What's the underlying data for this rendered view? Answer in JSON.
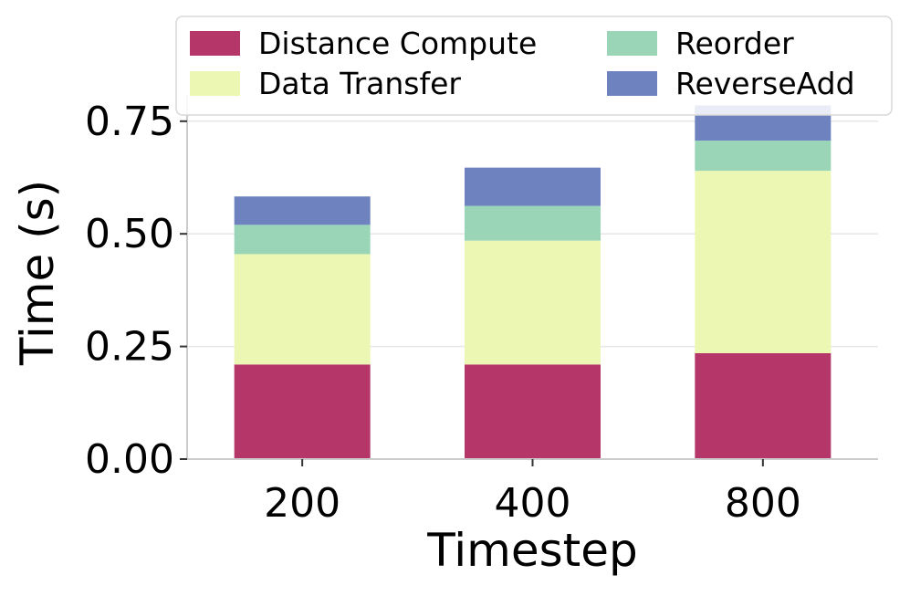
{
  "chart_data": {
    "type": "bar",
    "stacked": true,
    "categories": [
      "200",
      "400",
      "800"
    ],
    "series": [
      {
        "name": "Distance Compute",
        "color": "#b5376a",
        "values": [
          0.21,
          0.21,
          0.235
        ]
      },
      {
        "name": "Data Transfer",
        "color": "#ebf7b3",
        "values": [
          0.245,
          0.275,
          0.405
        ]
      },
      {
        "name": "Reorder",
        "color": "#9ad5b8",
        "values": [
          0.065,
          0.077,
          0.067
        ]
      },
      {
        "name": "ReverseAdd",
        "color": "#6e82bf",
        "values": [
          0.063,
          0.085,
          0.078
        ]
      }
    ],
    "xlabel": "Timestep",
    "ylabel": "Time (s)",
    "ylim": [
      0,
      0.78
    ],
    "yticks": [
      "0.00",
      "0.25",
      "0.50",
      "0.75"
    ],
    "ytick_values": [
      0,
      0.25,
      0.5,
      0.75
    ],
    "grid": "horizontal",
    "legend": {
      "placement": "top",
      "columns": 2
    }
  }
}
